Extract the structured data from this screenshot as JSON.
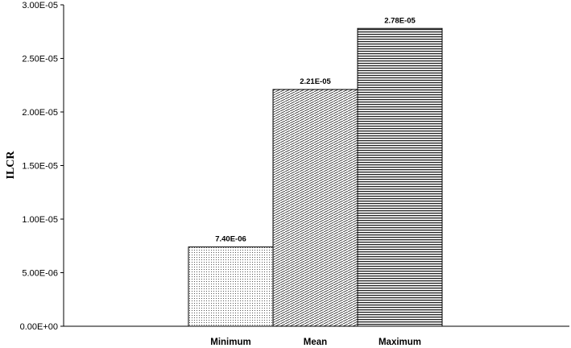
{
  "chart_data": {
    "type": "bar",
    "title": "",
    "xlabel": "",
    "ylabel": "ILCR",
    "categories": [
      "Minimum",
      "Mean",
      "Maximum"
    ],
    "values": [
      7.4e-06,
      2.21e-05,
      2.78e-05
    ],
    "data_labels": [
      "7.40E-06",
      "2.21E-05",
      "2.78E-05"
    ],
    "ylim": [
      0,
      3e-05
    ],
    "yticks": [
      0,
      5e-06,
      1e-05,
      1.5e-05,
      2e-05,
      2.5e-05,
      3e-05
    ],
    "ytick_labels": [
      "0.00E+00",
      "5.00E-06",
      "1.00E-05",
      "1.50E-05",
      "2.00E-05",
      "2.50E-05",
      "3.00E-05"
    ],
    "patterns": [
      "dotted",
      "diagonal-hatch",
      "horizontal-lines"
    ],
    "grid": false,
    "legend": "none"
  }
}
